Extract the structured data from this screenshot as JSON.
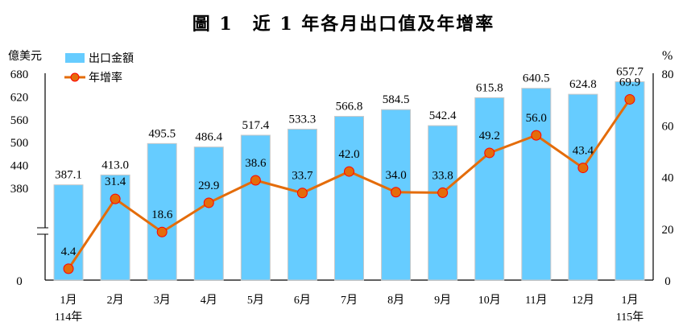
{
  "chart_data": {
    "type": "bar",
    "title": "圖 1　近 1 年各月出口值及年增率",
    "categories": [
      "1月",
      "2月",
      "3月",
      "4月",
      "5月",
      "6月",
      "7月",
      "8月",
      "9月",
      "10月",
      "11月",
      "12月",
      "1月"
    ],
    "category_sublabels": [
      "114年",
      "",
      "",
      "",
      "",
      "",
      "",
      "",
      "",
      "",
      "",
      "",
      "115年"
    ],
    "ylabel_left": "億美元",
    "ylabel_right": "%",
    "left_ticks": [
      "680",
      "620",
      "560",
      "500",
      "440",
      "380",
      "0"
    ],
    "left_tick_values": [
      680,
      620,
      560,
      500,
      440,
      380,
      0
    ],
    "left_axis_break": [
      0,
      380
    ],
    "right_ticks": [
      "80",
      "60",
      "40",
      "20",
      "0"
    ],
    "right_tick_values": [
      80,
      60,
      40,
      20,
      0
    ],
    "ylim_left": [
      0,
      680
    ],
    "ylim_right": [
      0,
      80
    ],
    "legend": [
      "出口金額",
      "年增率"
    ],
    "legend_position": "top-left",
    "series": [
      {
        "name": "出口金額",
        "type": "bar",
        "axis": "left",
        "color": "#66CCFF",
        "values": [
          387.1,
          413.0,
          495.5,
          486.4,
          517.4,
          533.3,
          566.8,
          584.5,
          542.4,
          615.8,
          640.5,
          624.8,
          657.7
        ],
        "labels": [
          "387.1",
          "413.0",
          "495.5",
          "486.4",
          "517.4",
          "533.3",
          "566.8",
          "584.5",
          "542.4",
          "615.8",
          "640.5",
          "624.8",
          "657.7"
        ]
      },
      {
        "name": "年增率",
        "type": "line",
        "axis": "right",
        "color": "#E46C0A",
        "marker_color": "#E46C0A",
        "marker_edge": "#FF0000",
        "values": [
          4.4,
          31.4,
          18.6,
          29.9,
          38.6,
          33.7,
          42.0,
          34.0,
          33.8,
          49.2,
          56.0,
          43.4,
          69.9
        ],
        "labels": [
          "4.4",
          "31.4",
          "18.6",
          "29.9",
          "38.6",
          "33.7",
          "42.0",
          "34.0",
          "33.8",
          "49.2",
          "56.0",
          "43.4",
          "69.9"
        ]
      }
    ]
  }
}
